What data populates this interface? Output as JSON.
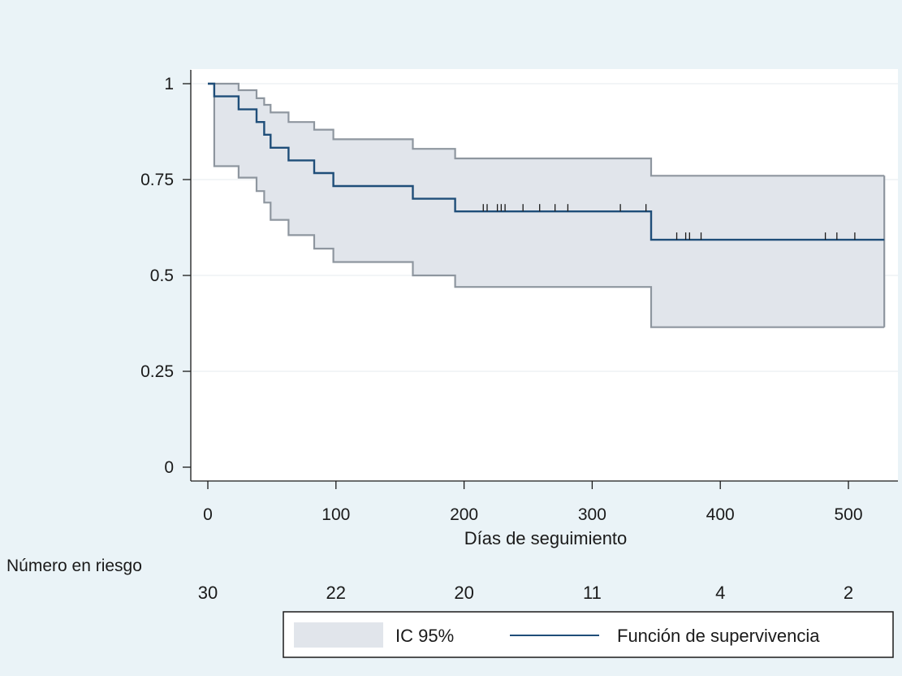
{
  "chart_data": {
    "type": "line",
    "subtype": "kaplan-meier",
    "title": "",
    "xlabel": "Días de seguimiento",
    "ylabel": "",
    "xlim": [
      0,
      530
    ],
    "ylim": [
      0,
      1
    ],
    "x_ticks": [
      0,
      100,
      200,
      300,
      400,
      500
    ],
    "x_tick_labels": [
      "0",
      "100",
      "200",
      "300",
      "400",
      "500"
    ],
    "y_ticks": [
      0,
      0.25,
      0.5,
      0.75,
      1
    ],
    "y_tick_labels": [
      "0",
      "0.25",
      "0.5",
      "0.75",
      "1"
    ],
    "grid": true,
    "survival": {
      "name": "Función de supervivencia",
      "color": "#1f4e79",
      "steps": [
        [
          0,
          1.0
        ],
        [
          5,
          0.967
        ],
        [
          24,
          0.933
        ],
        [
          38,
          0.9
        ],
        [
          44,
          0.867
        ],
        [
          49,
          0.833
        ],
        [
          63,
          0.8
        ],
        [
          83,
          0.767
        ],
        [
          98,
          0.733
        ],
        [
          160,
          0.7
        ],
        [
          193,
          0.667
        ],
        [
          346,
          0.593
        ],
        [
          528,
          0.593
        ]
      ],
      "censored_x": [
        215,
        218,
        226,
        229,
        232,
        246,
        259,
        271,
        281,
        322,
        342,
        366,
        373,
        376,
        385,
        482,
        491,
        505
      ]
    },
    "ci_band": {
      "name": "IC 95%",
      "fill_color": "#e1e5eb",
      "line_color": "#8e969f",
      "upper": [
        [
          0,
          1.0
        ],
        [
          5,
          1.0
        ],
        [
          24,
          0.983
        ],
        [
          38,
          0.962
        ],
        [
          44,
          0.945
        ],
        [
          49,
          0.925
        ],
        [
          63,
          0.9
        ],
        [
          83,
          0.88
        ],
        [
          98,
          0.855
        ],
        [
          160,
          0.83
        ],
        [
          193,
          0.805
        ],
        [
          346,
          0.76
        ],
        [
          528,
          0.76
        ]
      ],
      "lower": [
        [
          0,
          1.0
        ],
        [
          5,
          0.785
        ],
        [
          24,
          0.755
        ],
        [
          38,
          0.72
        ],
        [
          44,
          0.69
        ],
        [
          49,
          0.645
        ],
        [
          63,
          0.605
        ],
        [
          83,
          0.57
        ],
        [
          98,
          0.535
        ],
        [
          160,
          0.5
        ],
        [
          193,
          0.47
        ],
        [
          346,
          0.365
        ],
        [
          528,
          0.365
        ]
      ]
    },
    "risk_table": {
      "title": "Número en riesgo",
      "at": [
        0,
        100,
        200,
        300,
        400,
        500
      ],
      "values": [
        "30",
        "22",
        "20",
        "11",
        "4",
        "2"
      ]
    },
    "legend": {
      "position": "bottom",
      "entries": [
        "IC 95%",
        "Función de supervivencia"
      ]
    }
  }
}
